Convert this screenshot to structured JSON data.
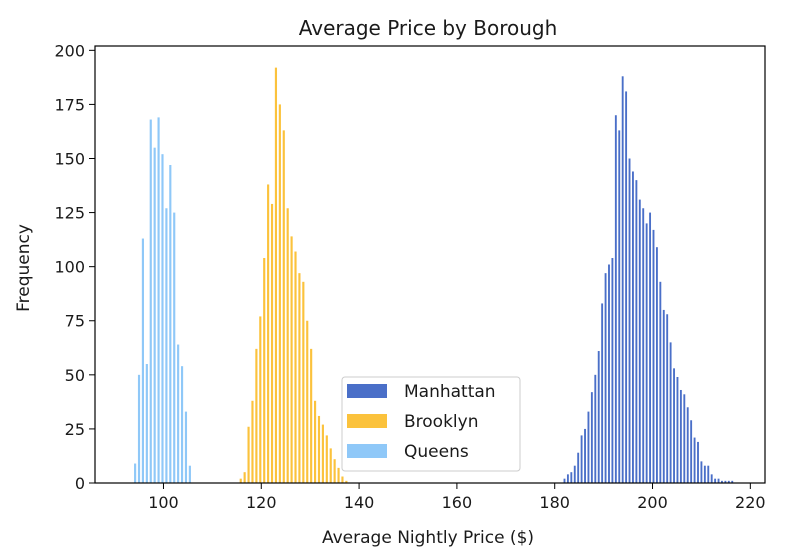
{
  "chart_data": {
    "type": "bar",
    "title": "Average Price by Borough",
    "xlabel": "Average Nightly Price ($)",
    "ylabel": "Frequency",
    "xlim": [
      86,
      223
    ],
    "ylim": [
      0,
      202
    ],
    "xticks": [
      100,
      120,
      140,
      160,
      180,
      200,
      220
    ],
    "yticks": [
      0,
      25,
      50,
      75,
      100,
      125,
      150,
      175,
      200
    ],
    "grid": false,
    "legend_position": "lower-center",
    "series": [
      {
        "name": "Manhattan",
        "color": "#4a6fc8",
        "x": [
          182,
          182.7,
          183.4,
          184.1,
          184.8,
          185.5,
          186.2,
          186.9,
          187.6,
          188.3,
          189.0,
          189.7,
          190.4,
          191.1,
          191.8,
          192.5,
          193.2,
          193.9,
          194.6,
          195.3,
          196.0,
          196.7,
          197.4,
          198.1,
          198.8,
          199.5,
          200.2,
          200.9,
          201.6,
          202.3,
          203.0,
          203.7,
          204.4,
          205.1,
          205.8,
          206.5,
          207.2,
          207.9,
          208.6,
          209.3,
          210.0,
          210.7,
          211.4,
          212.1,
          212.8,
          213.5,
          214.2,
          214.9,
          215.6,
          216.3
        ],
        "y": [
          2,
          4,
          5,
          8,
          14,
          22,
          25,
          33,
          42,
          50,
          61,
          83,
          97,
          101,
          104,
          170,
          163,
          188,
          181,
          150,
          144,
          140,
          131,
          127,
          120,
          125,
          117,
          109,
          93,
          80,
          78,
          65,
          53,
          49,
          43,
          41,
          35,
          29,
          21,
          19,
          10,
          8,
          8,
          4,
          2,
          2,
          1,
          1,
          1,
          1
        ]
      },
      {
        "name": "Brooklyn",
        "color": "#fbc23c",
        "x": [
          115.8,
          116.6,
          117.4,
          118.2,
          119.0,
          119.8,
          120.6,
          121.4,
          122.2,
          123.0,
          123.8,
          124.6,
          125.4,
          126.2,
          127.0,
          127.8,
          128.6,
          129.4,
          130.2,
          131.0,
          131.8,
          132.6,
          133.4,
          134.2,
          135.0,
          135.8,
          136.6,
          137.4
        ],
        "y": [
          2,
          5,
          26,
          38,
          62,
          77,
          104,
          138,
          129,
          192,
          175,
          163,
          127,
          114,
          107,
          97,
          93,
          75,
          62,
          38,
          31,
          27,
          22,
          16,
          11,
          7,
          3,
          1
        ]
      },
      {
        "name": "Queens",
        "color": "#8fc8f8",
        "x": [
          94.2,
          95.0,
          95.8,
          96.6,
          97.4,
          98.2,
          99.0,
          99.8,
          100.6,
          101.4,
          102.2,
          103.0,
          103.8,
          104.6,
          105.4
        ],
        "y": [
          9,
          50,
          113,
          55,
          168,
          155,
          169,
          152,
          127,
          147,
          125,
          64,
          54,
          33,
          8
        ]
      }
    ]
  }
}
